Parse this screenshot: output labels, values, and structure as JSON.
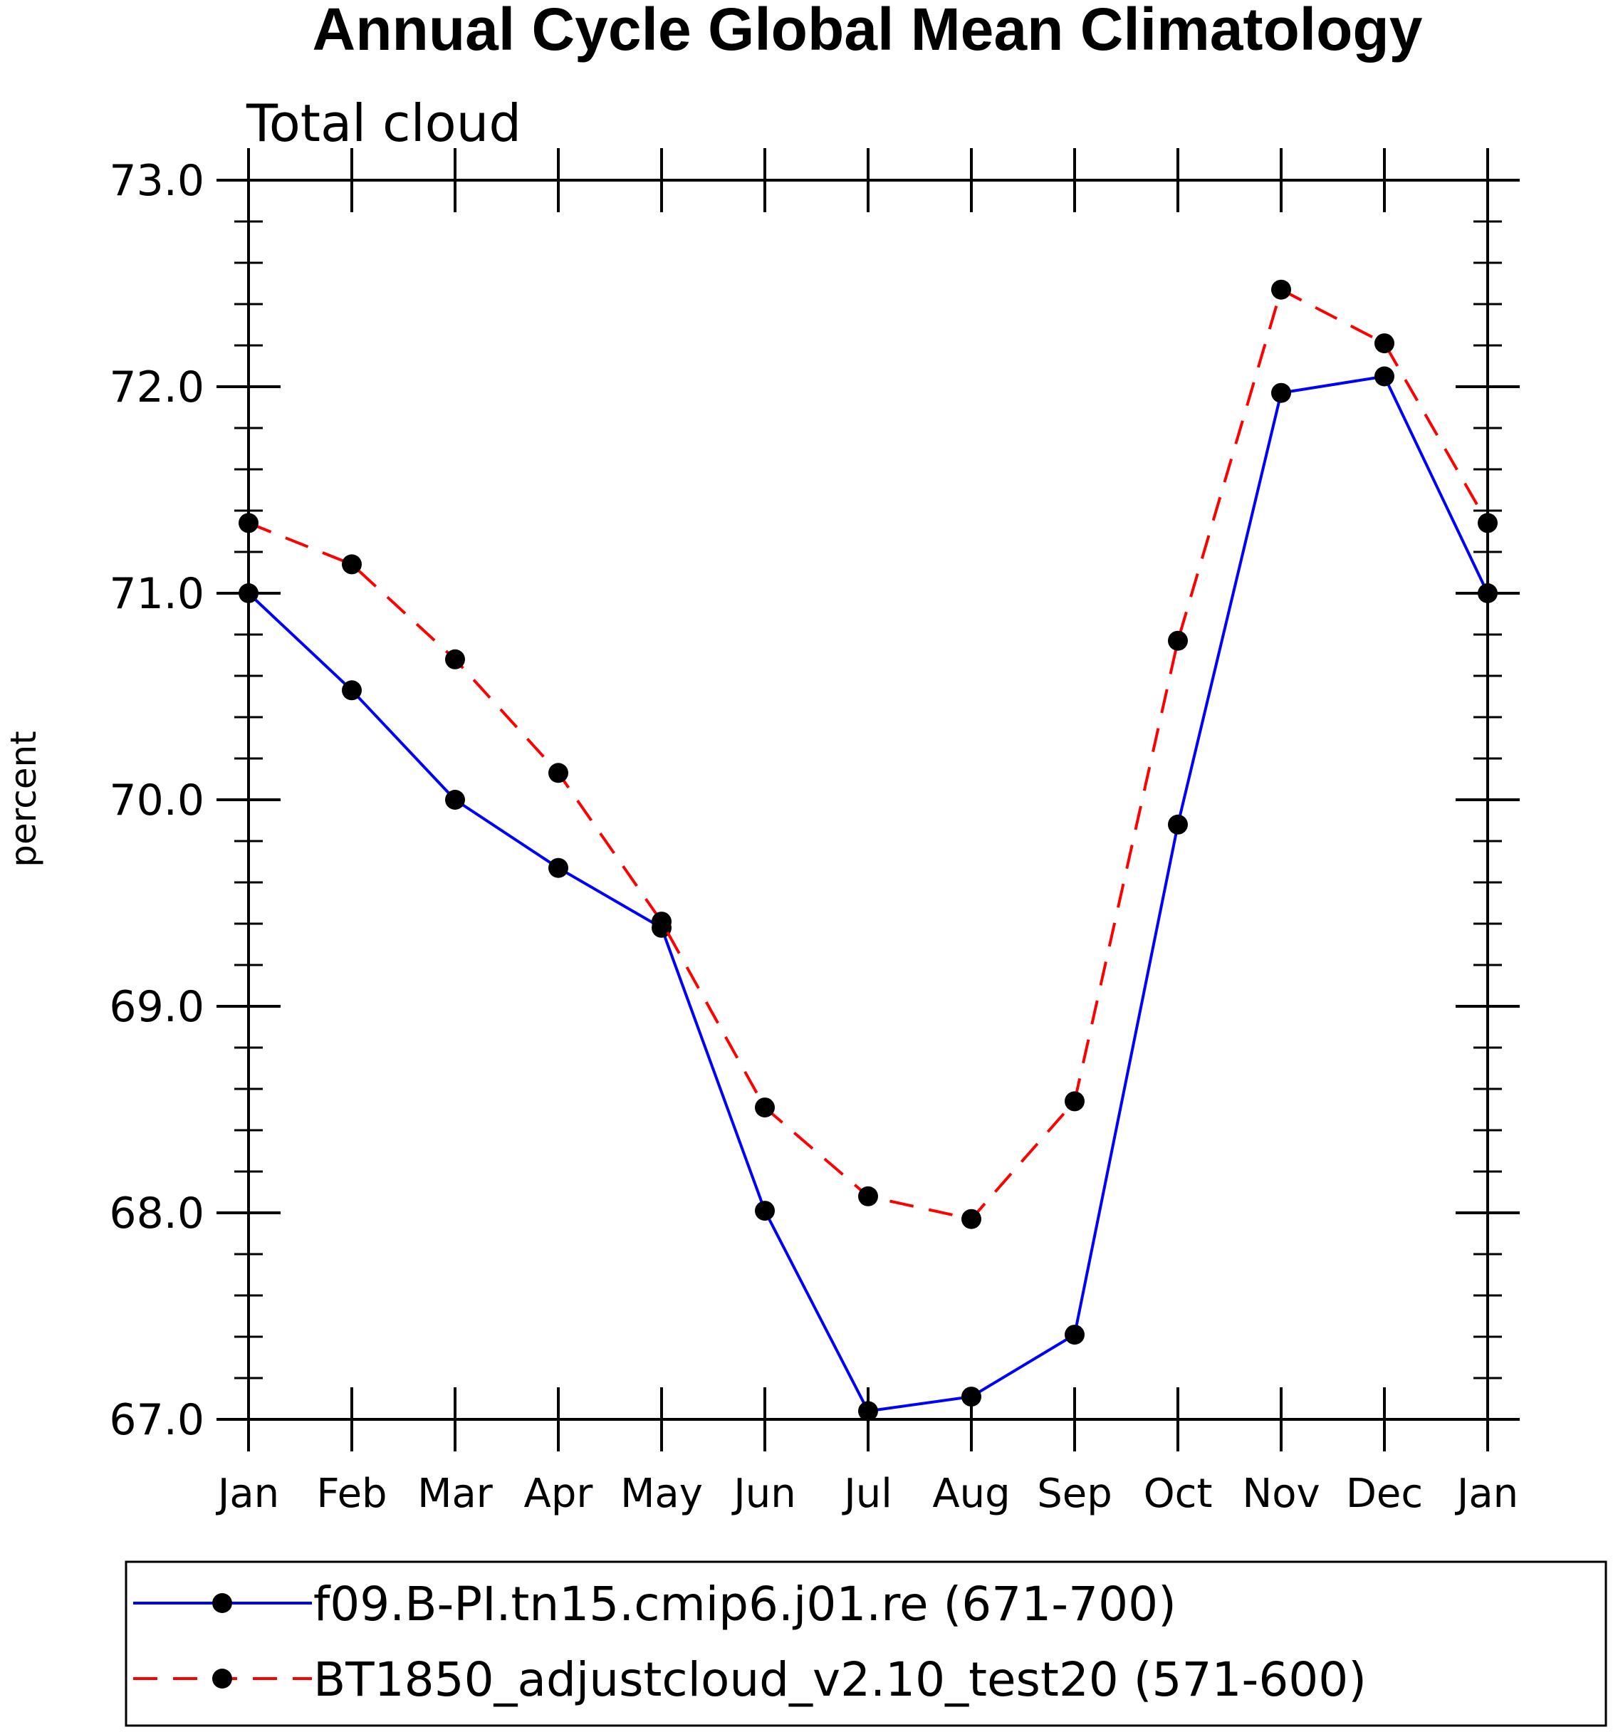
{
  "chart_data": {
    "type": "line",
    "title": "Annual Cycle Global Mean Climatology",
    "subtitle": "Total cloud",
    "xlabel": "",
    "ylabel": "percent",
    "categories": [
      "Jan",
      "Feb",
      "Mar",
      "Apr",
      "May",
      "Jun",
      "Jul",
      "Aug",
      "Sep",
      "Oct",
      "Nov",
      "Dec",
      "Jan"
    ],
    "ylim": [
      67.0,
      73.0
    ],
    "yticks": [
      "67.0",
      "68.0",
      "69.0",
      "70.0",
      "71.0",
      "72.0",
      "73.0"
    ],
    "grid": false,
    "legend_position": "bottom",
    "series": [
      {
        "name": "f09.B-PI.tn15.cmip6.j01.re (671-700)",
        "color": "#0000ff",
        "style": "solid",
        "marker": "filled-circle",
        "values": [
          71.0,
          70.53,
          70.0,
          69.67,
          69.38,
          68.01,
          67.04,
          67.11,
          67.41,
          69.88,
          71.97,
          72.05,
          71.0
        ]
      },
      {
        "name": "BT1850_adjustcloud_v2.10_test20 (571-600)",
        "color": "#ff0000",
        "style": "dashed",
        "marker": "filled-circle",
        "values": [
          71.34,
          71.14,
          70.68,
          70.13,
          69.41,
          68.51,
          68.08,
          67.97,
          68.54,
          70.77,
          72.47,
          72.21,
          71.34
        ]
      }
    ]
  }
}
